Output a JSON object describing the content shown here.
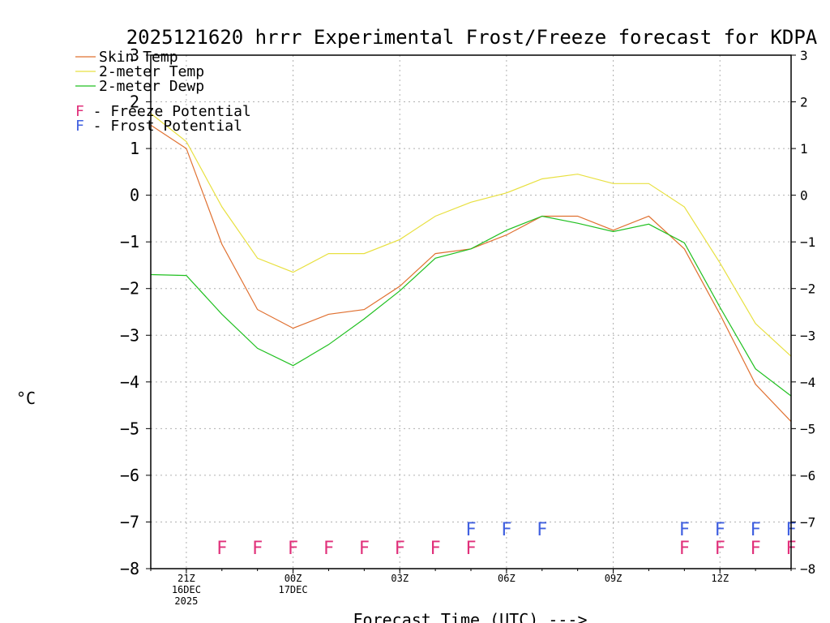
{
  "chart_data": {
    "type": "line",
    "title": "2025121620 hrrr Experimental Frost/Freeze forecast for KDPA",
    "xlabel": "Forecast Time (UTC) --->",
    "ylabel": "°C",
    "ylim": [
      -8,
      3
    ],
    "yticks": [
      3,
      2,
      1,
      0,
      -1,
      -2,
      -3,
      -4,
      -5,
      -6,
      -7,
      -8
    ],
    "grid": true,
    "x": [
      20,
      21,
      22,
      23,
      24,
      25,
      26,
      27,
      28,
      29,
      30,
      31,
      32,
      33,
      34,
      35,
      36,
      37,
      38
    ],
    "xlim": [
      20,
      38
    ],
    "xticks": [
      {
        "x": 21,
        "lines": [
          "21Z",
          "16DEC",
          "2025"
        ]
      },
      {
        "x": 24,
        "lines": [
          "00Z",
          "17DEC"
        ]
      },
      {
        "x": 27,
        "lines": [
          "03Z"
        ]
      },
      {
        "x": 30,
        "lines": [
          "06Z"
        ]
      },
      {
        "x": 33,
        "lines": [
          "09Z"
        ]
      },
      {
        "x": 36,
        "lines": [
          "12Z"
        ]
      }
    ],
    "series": [
      {
        "name": "Skin Temp",
        "color": "#e07030",
        "values": [
          1.5,
          1.0,
          -1.05,
          -2.45,
          -2.85,
          -2.55,
          -2.45,
          -1.95,
          -1.25,
          -1.15,
          -0.85,
          -0.45,
          -0.45,
          -0.75,
          -0.45,
          -1.15,
          -2.55,
          -4.05,
          -4.85
        ]
      },
      {
        "name": "2-meter Temp",
        "color": "#e8e040",
        "values": [
          1.75,
          1.15,
          -0.25,
          -1.35,
          -1.65,
          -1.25,
          -1.25,
          -0.95,
          -0.45,
          -0.15,
          0.05,
          0.35,
          0.45,
          0.25,
          0.25,
          -0.25,
          -1.45,
          -2.75,
          -3.45
        ]
      },
      {
        "name": "2-meter Dewp",
        "color": "#20c020",
        "values": [
          -1.7,
          -1.72,
          -2.55,
          -3.28,
          -3.65,
          -3.2,
          -2.65,
          -2.05,
          -1.35,
          -1.15,
          -0.75,
          -0.45,
          -0.6,
          -0.78,
          -0.62,
          -1.02,
          -2.4,
          -3.72,
          -4.3
        ]
      }
    ],
    "legend": {
      "freeze_label": "F - Freeze Potential",
      "frost_label": "F - Frost Potential",
      "freeze_color": "#e0307a",
      "frost_color": "#4060e0"
    },
    "freeze_marks": {
      "y": -7.5,
      "text": "F",
      "x": [
        22,
        23,
        24,
        25,
        26,
        27,
        28,
        29,
        35,
        36,
        37,
        38
      ]
    },
    "frost_marks": {
      "y": -7.1,
      "text": "F",
      "x": [
        29,
        30,
        31,
        35,
        36,
        37,
        38
      ]
    }
  }
}
